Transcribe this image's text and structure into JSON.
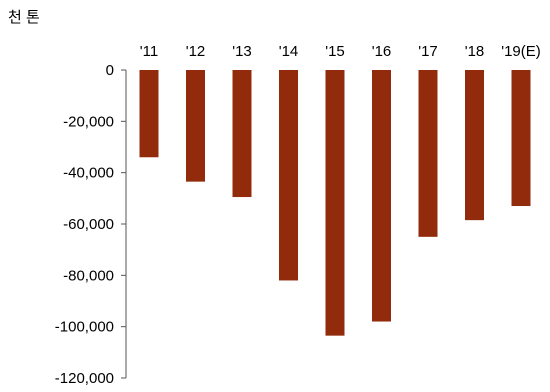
{
  "chart_data": {
    "type": "bar",
    "ylabel": "천 톤",
    "categories": [
      "'11",
      "'12",
      "'13",
      "'14",
      "'15",
      "'16",
      "'17",
      "'18",
      "'19(E)"
    ],
    "values": [
      -34000,
      -43500,
      -49500,
      -82000,
      -103500,
      -98000,
      -65000,
      -58500,
      -53000
    ],
    "ylim": [
      -120000,
      0
    ],
    "yticks": [
      0,
      -20000,
      -40000,
      -60000,
      -80000,
      -100000,
      -120000
    ],
    "ytick_labels": [
      "0",
      "-20,000",
      "-40,000",
      "-60,000",
      "-80,000",
      "-100,000",
      "-120,000"
    ],
    "grid": false,
    "bar_color": "#922b0c",
    "axis_color": "#555555"
  }
}
